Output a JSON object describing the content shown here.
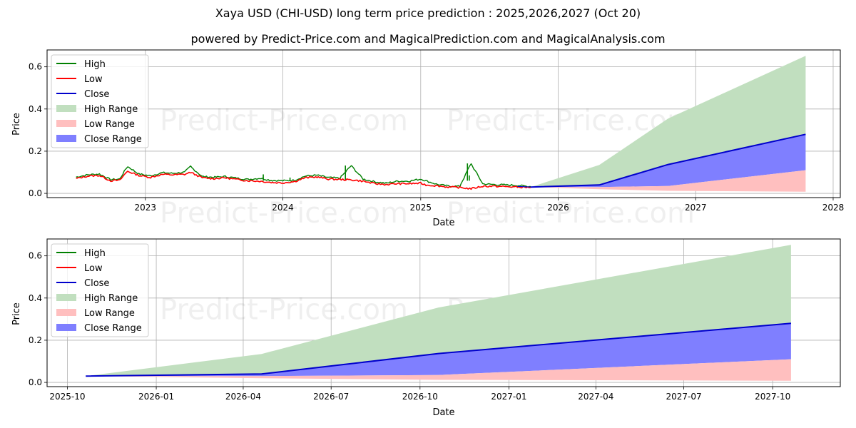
{
  "header": {
    "title": "Xaya USD (CHI-USD) long term price prediction : 2025,2026,2027 (Oct 20)",
    "subtitle": "powered by Predict-Price.com and MagicalPrediction.com and MagicalAnalysis.com"
  },
  "watermark": "Predict-Price.com",
  "legend": {
    "items": [
      {
        "label": "High",
        "kind": "line",
        "color": "#008000"
      },
      {
        "label": "Low",
        "kind": "line",
        "color": "#ff0000"
      },
      {
        "label": "Close",
        "kind": "line",
        "color": "#0000cc"
      },
      {
        "label": "High Range",
        "kind": "patch",
        "color": "#c1dfbf"
      },
      {
        "label": "Low Range",
        "kind": "patch",
        "color": "#ffbfbf"
      },
      {
        "label": "Close Range",
        "kind": "patch",
        "color": "#7f7fff"
      }
    ]
  },
  "colors": {
    "high": "#008000",
    "low": "#ff0000",
    "close": "#0000cc",
    "high_range": "#c1dfbf",
    "low_range": "#ffbfbf",
    "close_range": "#7f7fff",
    "grid": "#b0b0b0"
  },
  "chart_data": [
    {
      "type": "line",
      "title": "Xaya USD (CHI-USD) long term price prediction : 2025,2026,2027 (Oct 20)",
      "subtitle": "powered by Predict-Price.com and MagicalPrediction.com and MagicalAnalysis.com",
      "xlabel": "Date",
      "ylabel": "Price",
      "xlim": [
        "2022-04-15",
        "2028-01-20"
      ],
      "ylim": [
        -0.02,
        0.68
      ],
      "xticks": [
        "2023",
        "2024",
        "2025",
        "2026",
        "2027",
        "2028"
      ],
      "yticks": [
        "0.0",
        "0.2",
        "0.4",
        "0.6"
      ],
      "grid": true,
      "legend_position": "upper left",
      "historical": {
        "x": [
          "2022-07-01",
          "2022-08-01",
          "2022-09-01",
          "2022-10-01",
          "2022-10-25",
          "2022-11-15",
          "2022-12-15",
          "2023-01-15",
          "2023-02-15",
          "2023-03-15",
          "2023-04-15",
          "2023-05-01",
          "2023-06-01",
          "2023-07-01",
          "2023-08-01",
          "2023-09-01",
          "2023-10-01",
          "2023-11-01",
          "2023-12-01",
          "2024-01-01",
          "2024-02-01",
          "2024-03-01",
          "2024-04-01",
          "2024-05-01",
          "2024-06-01",
          "2024-07-01",
          "2024-08-01",
          "2024-09-01",
          "2024-10-01",
          "2024-11-01",
          "2024-12-01",
          "2025-01-01",
          "2025-01-15",
          "2025-02-15",
          "2025-03-15",
          "2025-04-15",
          "2025-05-15",
          "2025-06-15",
          "2025-07-15",
          "2025-08-15",
          "2025-09-15",
          "2025-10-20"
        ],
        "high": [
          0.077,
          0.088,
          0.092,
          0.065,
          0.068,
          0.128,
          0.092,
          0.083,
          0.098,
          0.095,
          0.1,
          0.128,
          0.08,
          0.076,
          0.08,
          0.072,
          0.066,
          0.072,
          0.062,
          0.06,
          0.062,
          0.082,
          0.086,
          0.075,
          0.072,
          0.132,
          0.068,
          0.055,
          0.048,
          0.058,
          0.058,
          0.068,
          0.06,
          0.042,
          0.035,
          0.033,
          0.142,
          0.045,
          0.042,
          0.04,
          0.038,
          0.032
        ],
        "low": [
          0.07,
          0.082,
          0.085,
          0.06,
          0.062,
          0.105,
          0.085,
          0.076,
          0.09,
          0.088,
          0.09,
          0.1,
          0.074,
          0.07,
          0.074,
          0.066,
          0.06,
          0.058,
          0.052,
          0.05,
          0.056,
          0.074,
          0.078,
          0.068,
          0.066,
          0.064,
          0.058,
          0.046,
          0.042,
          0.046,
          0.046,
          0.048,
          0.04,
          0.036,
          0.03,
          0.028,
          0.022,
          0.034,
          0.034,
          0.032,
          0.03,
          0.028
        ],
        "close": [
          0.073,
          0.085,
          0.088,
          0.062,
          0.065,
          0.112,
          0.088,
          0.079,
          0.094,
          0.092,
          0.095,
          0.108,
          0.077,
          0.073,
          0.077,
          0.069,
          0.063,
          0.064,
          0.056,
          0.054,
          0.059,
          0.078,
          0.082,
          0.071,
          0.069,
          0.068,
          0.062,
          0.05,
          0.045,
          0.05,
          0.05,
          0.055,
          0.047,
          0.039,
          0.033,
          0.03,
          0.035,
          0.037,
          0.037,
          0.035,
          0.033,
          0.03
        ]
      },
      "prediction": {
        "x": [
          "2025-10-20",
          "2026-04-20",
          "2026-10-20",
          "2027-10-20"
        ],
        "high_range": [
          0.03,
          0.135,
          0.355,
          0.652
        ],
        "close": [
          0.03,
          0.04,
          0.137,
          0.28
        ],
        "low_upper": [
          0.03,
          0.03,
          0.035,
          0.11
        ],
        "low_lower": [
          0.03,
          0.02,
          0.012,
          0.008
        ]
      }
    },
    {
      "type": "area",
      "xlabel": "Date",
      "ylabel": "Price",
      "xlim": [
        "2025-09-10",
        "2027-12-10"
      ],
      "ylim": [
        -0.02,
        0.68
      ],
      "xticks": [
        "2025-10",
        "2026-01",
        "2026-04",
        "2026-07",
        "2026-10",
        "2027-01",
        "2027-04",
        "2027-07",
        "2027-10"
      ],
      "yticks": [
        "0.0",
        "0.2",
        "0.4",
        "0.6"
      ],
      "grid": true,
      "legend_position": "upper left",
      "series": [
        {
          "name": "High Range",
          "x": [
            "2025-10-20",
            "2026-04-20",
            "2026-10-20",
            "2027-10-20"
          ],
          "values": [
            0.03,
            0.135,
            0.355,
            0.652
          ]
        },
        {
          "name": "Close",
          "x": [
            "2025-10-20",
            "2026-04-20",
            "2026-10-20",
            "2027-10-20"
          ],
          "values": [
            0.03,
            0.04,
            0.137,
            0.28
          ]
        },
        {
          "name": "Low Range (upper)",
          "x": [
            "2025-10-20",
            "2026-04-20",
            "2026-10-20",
            "2027-10-20"
          ],
          "values": [
            0.03,
            0.03,
            0.035,
            0.11
          ]
        },
        {
          "name": "Low Range (lower)",
          "x": [
            "2025-10-20",
            "2026-04-20",
            "2026-10-20",
            "2027-10-20"
          ],
          "values": [
            0.03,
            0.02,
            0.012,
            0.008
          ]
        }
      ]
    }
  ]
}
